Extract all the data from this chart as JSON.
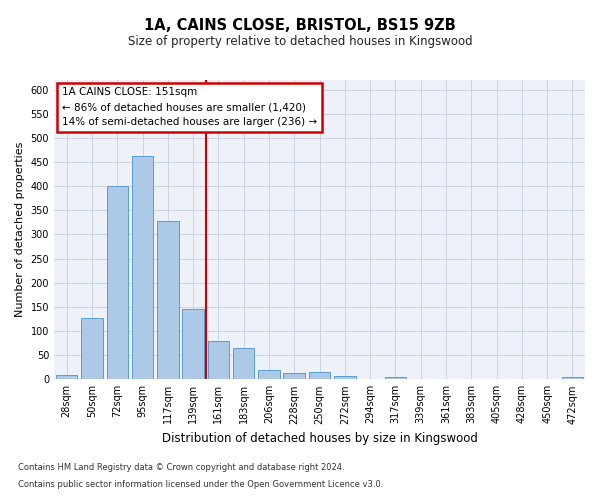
{
  "title": "1A, CAINS CLOSE, BRISTOL, BS15 9ZB",
  "subtitle": "Size of property relative to detached houses in Kingswood",
  "xlabel": "Distribution of detached houses by size in Kingswood",
  "ylabel": "Number of detached properties",
  "bar_labels": [
    "28sqm",
    "50sqm",
    "72sqm",
    "95sqm",
    "117sqm",
    "139sqm",
    "161sqm",
    "183sqm",
    "206sqm",
    "228sqm",
    "250sqm",
    "272sqm",
    "294sqm",
    "317sqm",
    "339sqm",
    "361sqm",
    "383sqm",
    "405sqm",
    "428sqm",
    "450sqm",
    "472sqm"
  ],
  "bar_values": [
    8,
    128,
    400,
    462,
    328,
    145,
    80,
    65,
    20,
    13,
    15,
    6,
    0,
    4,
    0,
    0,
    0,
    0,
    0,
    0,
    4
  ],
  "bar_color": "#adc9e8",
  "bar_edge_color": "#5b9bd5",
  "vline_x": 5.5,
  "vline_color": "#cc0000",
  "ylim": [
    0,
    620
  ],
  "yticks": [
    0,
    50,
    100,
    150,
    200,
    250,
    300,
    350,
    400,
    450,
    500,
    550,
    600
  ],
  "annotation_title": "1A CAINS CLOSE: 151sqm",
  "annotation_line1": "← 86% of detached houses are smaller (1,420)",
  "annotation_line2": "14% of semi-detached houses are larger (236) →",
  "annotation_box_color": "#ffffff",
  "annotation_box_edge": "#cc0000",
  "footnote1": "Contains HM Land Registry data © Crown copyright and database right 2024.",
  "footnote2": "Contains public sector information licensed under the Open Government Licence v3.0.",
  "bg_color": "#eef2f8",
  "grid_color": "#c8d4e4",
  "title_fontsize": 10.5,
  "subtitle_fontsize": 8.5,
  "xlabel_fontsize": 8.5,
  "ylabel_fontsize": 8,
  "tick_fontsize": 7,
  "annot_fontsize": 7.5,
  "footnote_fontsize": 6
}
